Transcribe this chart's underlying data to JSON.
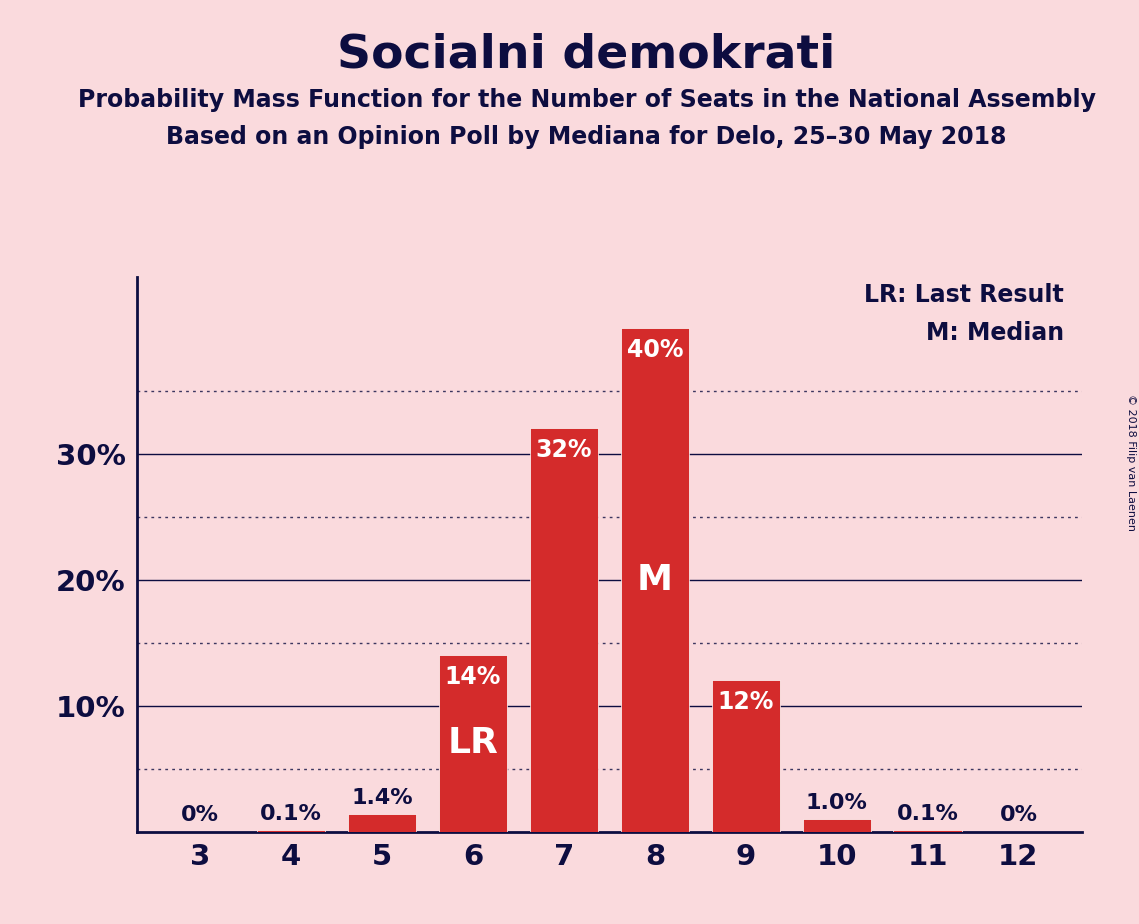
{
  "title": "Socialni demokrati",
  "subtitle1": "Probability Mass Function for the Number of Seats in the National Assembly",
  "subtitle2": "Based on an Opinion Poll by Mediana for Delo, 25–30 May 2018",
  "copyright": "© 2018 Filip van Laenen",
  "seats": [
    3,
    4,
    5,
    6,
    7,
    8,
    9,
    10,
    11,
    12
  ],
  "values": [
    0.0,
    0.1,
    1.4,
    14.0,
    32.0,
    40.0,
    12.0,
    1.0,
    0.1,
    0.0
  ],
  "bar_labels": [
    "0%",
    "0.1%",
    "1.4%",
    "14%",
    "32%",
    "40%",
    "12%",
    "1.0%",
    "0.1%",
    "0%"
  ],
  "bar_color": "#d42b2b",
  "background_color": "#fadadd",
  "label_color": "#0d0d40",
  "bar_label_inside_color": "#ffffff",
  "bar_label_outside_color": "#0d0d40",
  "LR_seat": 6,
  "M_seat": 8,
  "solid_lines": [
    10,
    20,
    30
  ],
  "dotted_lines": [
    5,
    15,
    25,
    35
  ],
  "ylim": [
    0,
    44
  ],
  "legend_LR": "LR: Last Result",
  "legend_M": "M: Median",
  "bar_width": 0.75,
  "inside_threshold": 10,
  "title_fontsize": 34,
  "subtitle_fontsize": 17,
  "tick_fontsize": 21,
  "bar_label_fontsize_inside": 17,
  "bar_label_fontsize_outside": 16,
  "lr_m_fontsize": 26,
  "legend_fontsize": 17
}
